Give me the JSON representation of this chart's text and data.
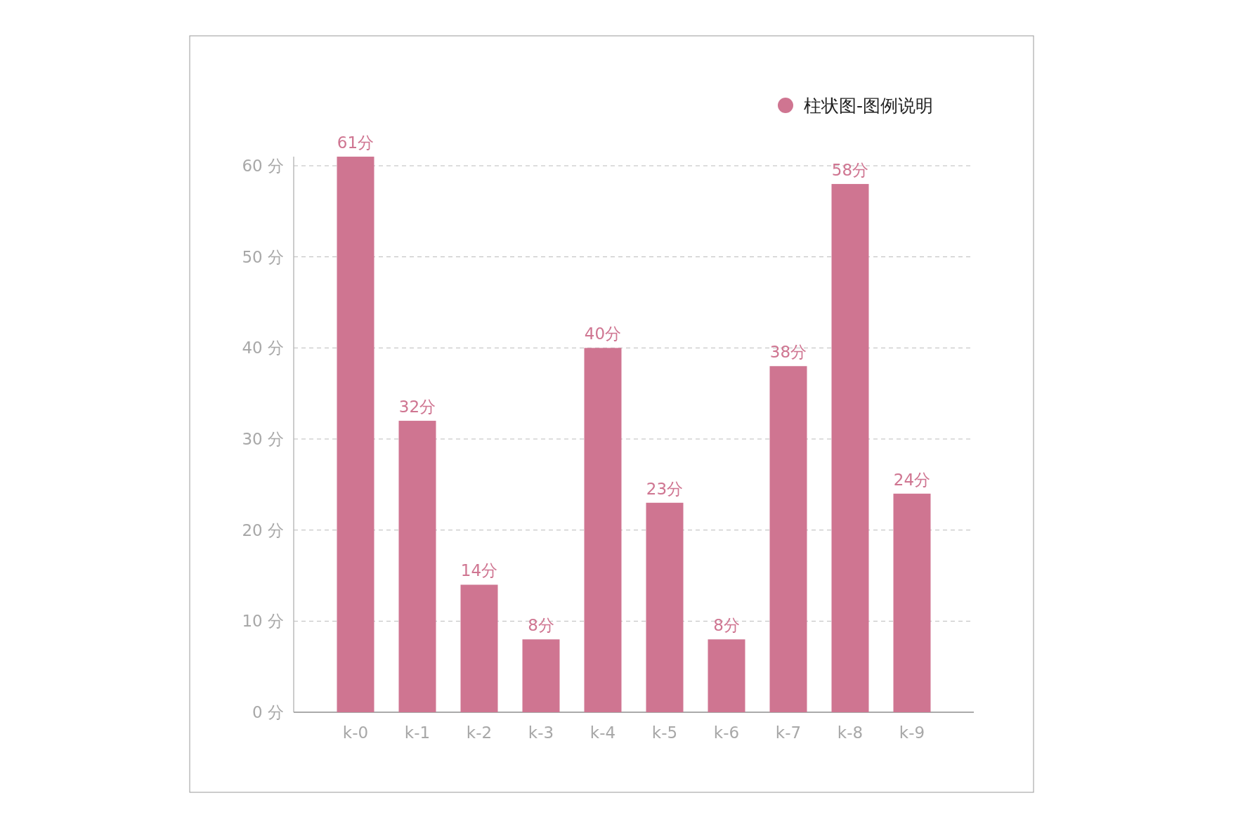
{
  "chart_data": {
    "type": "bar",
    "categories": [
      "k-0",
      "k-1",
      "k-2",
      "k-3",
      "k-4",
      "k-5",
      "k-6",
      "k-7",
      "k-8",
      "k-9"
    ],
    "series": [
      {
        "name": "柱状图-图例说明",
        "color": "#cf7591",
        "values": [
          61,
          32,
          14,
          8,
          40,
          23,
          8,
          38,
          58,
          24
        ],
        "value_labels": [
          "61分",
          "32分",
          "14分",
          "8分",
          "40分",
          "23分",
          "8分",
          "38分",
          "58分",
          "24分"
        ]
      }
    ],
    "ylim": [
      0,
      61
    ],
    "yticks": [
      {
        "value": 0,
        "label": "0 分"
      },
      {
        "value": 10,
        "label": "10 分"
      },
      {
        "value": 20,
        "label": "20 分"
      },
      {
        "value": 30,
        "label": "30 分"
      },
      {
        "value": 40,
        "label": "40 分"
      },
      {
        "value": 50,
        "label": "50 分"
      },
      {
        "value": 60,
        "label": "60 分"
      }
    ],
    "grid": "y",
    "legend": "top right"
  }
}
